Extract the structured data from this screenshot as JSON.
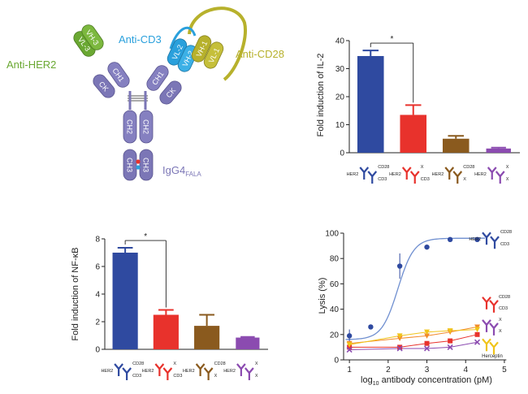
{
  "colors": {
    "blue": "#2f4aa0",
    "red": "#e8322c",
    "brown": "#8a5a1e",
    "purple": "#8b4bb0",
    "yellow": "#f0c419",
    "orange": "#f28a2a",
    "curve_blue": "#6f8fd0",
    "light_blue": "#2aa0dc",
    "green": "#6aa832",
    "olive": "#b7b12c",
    "domain": "#7b76b6",
    "axis": "#222222"
  },
  "antibody": {
    "label_anti_her2": "Anti-HER2",
    "label_anti_cd3": "Anti-CD3",
    "label_anti_cd28": "Anti-CD28",
    "label_igg4": "IgG4",
    "label_igg4_sub": "FALA",
    "domains": {
      "vl3": "VL-3",
      "vh3": "VH-3",
      "ck_left": "CK",
      "ch1_left": "CH1",
      "vl2": "VL-2",
      "vh2": "VH-2",
      "vh1": "VH-1",
      "vl1": "VL-1",
      "ch1_right": "CH1",
      "ck_right": "CK",
      "ch2_left": "CH2",
      "ch2_right": "CH2",
      "ch3_left": "CH3",
      "ch3_right": "CH3"
    }
  },
  "legend_glyphs": {
    "her2": "HER2",
    "cd28": "CD28",
    "cd3": "CD3",
    "x": "X"
  },
  "chart_data": [
    {
      "id": "il2",
      "type": "bar",
      "title": "",
      "ylabel": "Fold induction of IL-2",
      "ylim": [
        0,
        40
      ],
      "yticks": [
        "0",
        "10",
        "20",
        "30",
        "40"
      ],
      "categories": [
        "HER2/CD28/CD3",
        "HER2/X/CD3",
        "HER2/CD28/X",
        "HER2/X/X"
      ],
      "values": [
        34.5,
        13.5,
        5,
        1.5
      ],
      "errors": [
        2,
        3.5,
        1,
        0.3
      ],
      "significance": "*",
      "significance_between": [
        0,
        1
      ]
    },
    {
      "id": "nfkb",
      "type": "bar",
      "title": "",
      "ylabel": "Fold induction of NF-κB",
      "ylim": [
        0,
        8
      ],
      "yticks": [
        "0",
        "2",
        "4",
        "6",
        "8"
      ],
      "categories": [
        "HER2/CD28/CD3",
        "HER2/X/CD3",
        "HER2/CD28/X",
        "HER2/X/X"
      ],
      "values": [
        7,
        2.5,
        1.7,
        0.85
      ],
      "errors": [
        0.35,
        0.35,
        0.8,
        0.05
      ],
      "significance": "*",
      "significance_between": [
        0,
        1
      ]
    },
    {
      "id": "lysis",
      "type": "scatter",
      "ylabel": "Lysis (%)",
      "xlabel_prefix": "log",
      "xlabel_sub": "10",
      "xlabel_suffix": " antibody concentration (pM)",
      "xlim": [
        0.85,
        5.4
      ],
      "ylim": [
        0,
        100
      ],
      "xticks": [
        "1",
        "2",
        "3",
        "4",
        "5"
      ],
      "yticks": [
        "0",
        "20",
        "40",
        "60",
        "80",
        "100"
      ],
      "herceptin_label": "Herceptin",
      "series": [
        {
          "name": "HER2/CD28/CD3",
          "color_key": "blue",
          "marker": "circle",
          "x": [
            1,
            1.55,
            2.3,
            3.0,
            3.6,
            4.3
          ],
          "y": [
            19,
            26,
            74,
            89,
            95,
            95
          ],
          "err": [
            5,
            0,
            10,
            0,
            0,
            0
          ],
          "fit": "sigmoid",
          "fit_bottom": 16,
          "fit_top": 96,
          "fit_ec50": 2.25,
          "fit_slope": 2.1
        },
        {
          "name": "HER2/X/CD3",
          "color_key": "red",
          "marker": "square",
          "x": [
            1,
            2.3,
            3.0,
            3.6,
            4.3
          ],
          "y": [
            10,
            10,
            13,
            15,
            20
          ]
        },
        {
          "name": "HER2/CD28/X",
          "color_key": "orange",
          "marker": "triangle-down",
          "x": [
            1,
            2.3,
            3.0,
            3.6,
            4.3
          ],
          "y": [
            13,
            17,
            19,
            22,
            26
          ]
        },
        {
          "name": "Herceptin",
          "color_key": "yellow",
          "marker": "triangle-down",
          "x": [
            1,
            2.3,
            3.0,
            3.6,
            4.3
          ],
          "y": [
            12,
            19,
            22,
            23,
            24
          ]
        },
        {
          "name": "HER2/X/X",
          "color_key": "purple",
          "marker": "x",
          "x": [
            1,
            2.3,
            3.0,
            3.6,
            4.3
          ],
          "y": [
            8,
            9,
            9,
            10,
            14
          ]
        }
      ]
    }
  ]
}
